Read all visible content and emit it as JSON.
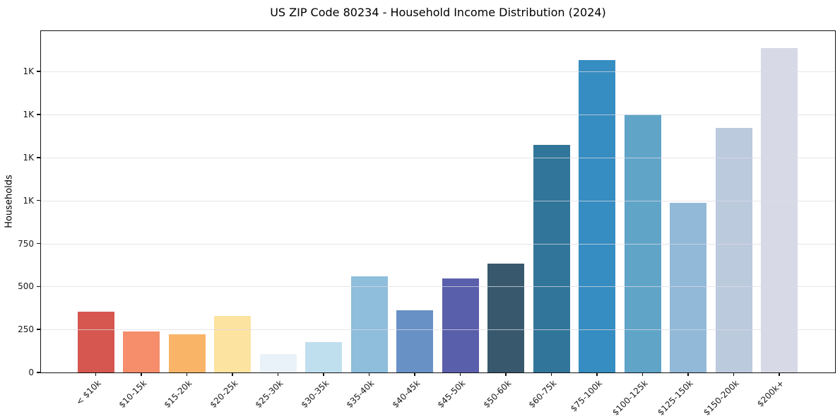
{
  "title": "US ZIP Code 80234 - Household Income Distribution (2024)",
  "chart_data": {
    "type": "bar",
    "title": "US ZIP Code 80234 - Household Income Distribution (2024)",
    "xlabel": "",
    "ylabel": "Households",
    "legend_position": "none",
    "grid": "horizontal gridlines, light gray, overlaid on bars",
    "background_color": "#ffffff",
    "spine_color": "#111111",
    "ylim": [
      0,
      1985
    ],
    "categories": [
      "< $10k",
      "$10-15k",
      "$15-20k",
      "$20-25k",
      "$25-30k",
      "$30-35k",
      "$35-40k",
      "$40-45k",
      "$45-50k",
      "$50-60k",
      "$60-75k",
      "$75-100k",
      "$100-125k",
      "$125-150k",
      "$150-200k",
      "$200k+"
    ],
    "values": [
      355,
      240,
      220,
      330,
      105,
      178,
      560,
      363,
      545,
      635,
      1325,
      1815,
      1500,
      985,
      1420,
      1885
    ],
    "bar_colors": [
      "#d6574f",
      "#f68d6b",
      "#f9b468",
      "#fde3a0",
      "#e8f2f8",
      "#c0dfee",
      "#8fbddc",
      "#6891c5",
      "#5a5fab",
      "#38596d",
      "#31759a",
      "#368dc1",
      "#60a5c8",
      "#92b9d8",
      "#bccade",
      "#d7d9e6"
    ],
    "yticks": [
      {
        "value": 0,
        "label": "0"
      },
      {
        "value": 250,
        "label": "250"
      },
      {
        "value": 500,
        "label": "500"
      },
      {
        "value": 750,
        "label": "750"
      },
      {
        "value": 1000,
        "label": "1K"
      },
      {
        "value": 1250,
        "label": "1K"
      },
      {
        "value": 1500,
        "label": "1K"
      },
      {
        "value": 1750,
        "label": "1K"
      }
    ]
  }
}
